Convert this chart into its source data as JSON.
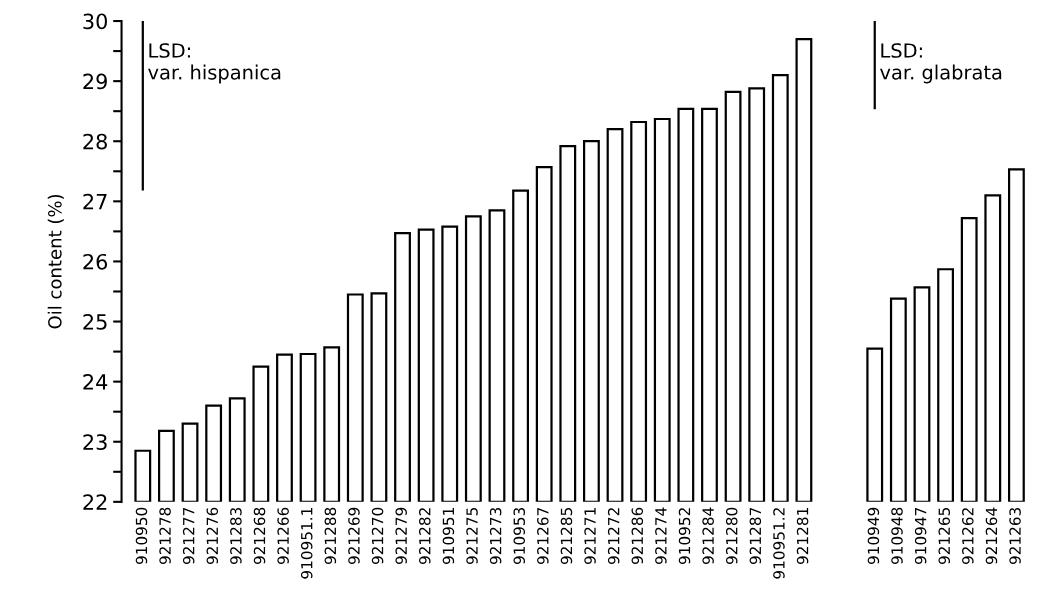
{
  "chart_data": {
    "type": "bar",
    "ylabel": "Oil content (%)",
    "categories": [
      "910950",
      "921278",
      "921277",
      "921276",
      "921283",
      "921268",
      "921266",
      "910951.1",
      "921288",
      "921269",
      "921270",
      "921279",
      "921282",
      "910951",
      "921275",
      "921273",
      "910953",
      "921267",
      "921285",
      "921271",
      "921272",
      "921286",
      "921274",
      "910952",
      "921284",
      "921280",
      "921287",
      "910951.2",
      "921281",
      null,
      null,
      "910949",
      "910948",
      "910947",
      "921265",
      "921262",
      "921264",
      "921263"
    ],
    "series": [
      {
        "color": "#ffffff",
        "values": [
          22.85,
          23.18,
          23.3,
          23.6,
          23.72,
          24.25,
          24.45,
          24.46,
          24.57,
          25.45,
          25.47,
          26.47,
          26.53,
          26.58,
          26.75,
          26.85,
          27.18,
          27.57,
          27.92,
          28.0,
          28.2,
          28.32,
          28.37,
          28.54,
          28.54,
          28.82,
          28.88,
          29.1,
          29.7,
          null,
          null,
          24.55,
          25.38,
          25.57,
          25.87,
          26.72,
          27.1,
          27.53
        ]
      },
      {
        "type": "line",
        "color": "#000000",
        "x": [
          "910950",
          "910950"
        ],
        "values": [
          27.2,
          30.0
        ]
      },
      {
        "type": "line",
        "color": "#000000",
        "x": [
          "910949",
          "910949"
        ],
        "values": [
          28.55,
          30.0
        ]
      }
    ],
    "ylim": [
      22,
      30
    ],
    "yticks": [
      22,
      {
        "value": 22.5,
        "label": null
      },
      23,
      {
        "value": 23.5,
        "label": null
      },
      24,
      {
        "value": 24.5,
        "label": null
      },
      25,
      {
        "value": 25.5,
        "label": null
      },
      26,
      {
        "value": 26.5,
        "label": null
      },
      27,
      {
        "value": 27.5,
        "label": null
      },
      28,
      {
        "value": 28.5,
        "label": null
      },
      29,
      {
        "value": 29.5,
        "label": null
      },
      30
    ],
    "annotations": [
      {
        "text": "LSD:\nvar. hispanica",
        "x": "910950",
        "y": 29.3
      },
      {
        "text": "LSD:\nvar. glabrata",
        "x": "910949",
        "y": 29.3
      }
    ],
    "grid": false,
    "legend": false
  }
}
